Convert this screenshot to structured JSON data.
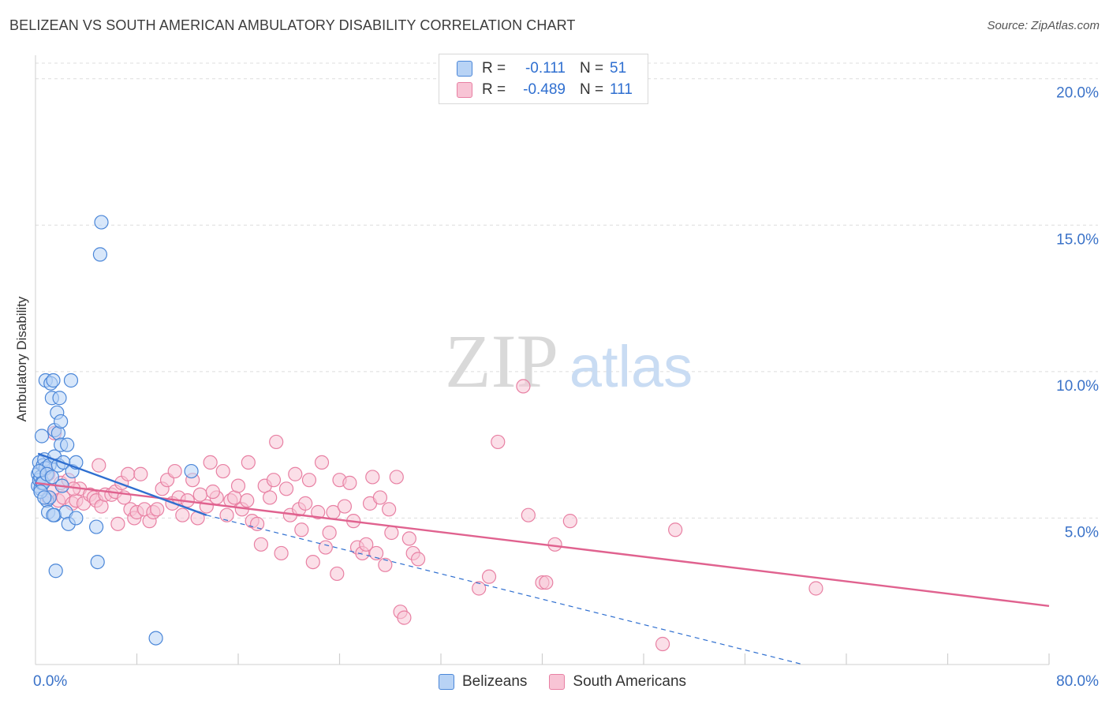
{
  "title": "BELIZEAN VS SOUTH AMERICAN AMBULATORY DISABILITY CORRELATION CHART",
  "source": "Source: ZipAtlas.com",
  "watermark": {
    "zip": "ZIP",
    "atlas": "atlas"
  },
  "legend_top": {
    "rows": [
      {
        "r_label": "R =",
        "r_value": "-0.111",
        "n_label": "N =",
        "n_value": "51"
      },
      {
        "r_label": "R =",
        "r_value": "-0.489",
        "n_label": "N =",
        "n_value": "111"
      }
    ]
  },
  "legend_bottom": {
    "items": [
      {
        "label": "Belizeans"
      },
      {
        "label": "South Americans"
      }
    ]
  },
  "colors": {
    "belizean_fill": "#b8d3f5",
    "belizean_stroke": "#4a86d8",
    "belizean_line": "#2f6fd0",
    "south_fill": "#f8c4d5",
    "south_stroke": "#e880a3",
    "south_line": "#e0628f",
    "axis_label": "#3a72c8",
    "grid": "#dedede"
  },
  "chart_data": {
    "type": "scatter",
    "title": "BELIZEAN VS SOUTH AMERICAN AMBULATORY DISABILITY CORRELATION CHART",
    "xlabel": "",
    "ylabel": "Ambulatory Disability",
    "xlim": [
      0,
      80
    ],
    "ylim": [
      0,
      20.8
    ],
    "x_tick_labels": [
      "0.0%",
      "80.0%"
    ],
    "y_ticks": [
      5,
      10,
      15,
      20
    ],
    "y_tick_labels": [
      "5.0%",
      "10.0%",
      "15.0%",
      "20.0%"
    ],
    "grid": true,
    "legend_placement": "top-center",
    "series": [
      {
        "name": "Belizeans",
        "r": -0.111,
        "n": 51,
        "trend": {
          "x0": 0.2,
          "y0": 7.2,
          "x1": 13.5,
          "y1": 5.1,
          "solid_until": 13.5,
          "dash_to_x": 60.6,
          "dash_to_y": 0.0
        },
        "points": [
          [
            0.2,
            6.1
          ],
          [
            0.2,
            6.5
          ],
          [
            0.3,
            6.3
          ],
          [
            0.3,
            6.9
          ],
          [
            0.4,
            6.0
          ],
          [
            0.4,
            6.4
          ],
          [
            0.5,
            7.8
          ],
          [
            0.5,
            6.2
          ],
          [
            0.6,
            6.8
          ],
          [
            0.7,
            7.0
          ],
          [
            0.8,
            9.7
          ],
          [
            0.8,
            6.7
          ],
          [
            0.9,
            5.6
          ],
          [
            1.0,
            5.2
          ],
          [
            1.1,
            6.8
          ],
          [
            1.2,
            9.6
          ],
          [
            1.3,
            9.1
          ],
          [
            1.4,
            9.7
          ],
          [
            1.5,
            7.1
          ],
          [
            1.5,
            8.0
          ],
          [
            1.5,
            5.1
          ],
          [
            1.6,
            3.2
          ],
          [
            1.7,
            8.6
          ],
          [
            1.8,
            7.9
          ],
          [
            1.8,
            6.8
          ],
          [
            1.9,
            9.1
          ],
          [
            2.0,
            8.3
          ],
          [
            2.0,
            7.5
          ],
          [
            2.2,
            6.9
          ],
          [
            2.4,
            5.2
          ],
          [
            2.5,
            7.5
          ],
          [
            2.6,
            4.8
          ],
          [
            2.8,
            9.7
          ],
          [
            2.9,
            6.6
          ],
          [
            3.2,
            6.9
          ],
          [
            3.2,
            5.0
          ],
          [
            4.8,
            4.7
          ],
          [
            4.9,
            3.5
          ],
          [
            5.1,
            14.0
          ],
          [
            5.2,
            15.1
          ],
          [
            9.5,
            0.9
          ],
          [
            12.3,
            6.6
          ],
          [
            0.3,
            6.6
          ],
          [
            0.6,
            6.2
          ],
          [
            0.9,
            6.5
          ],
          [
            1.1,
            5.7
          ],
          [
            1.3,
            6.4
          ],
          [
            0.4,
            5.9
          ],
          [
            0.7,
            5.7
          ],
          [
            2.1,
            6.1
          ],
          [
            1.4,
            5.1
          ]
        ]
      },
      {
        "name": "South Americans",
        "r": -0.489,
        "n": 111,
        "trend": {
          "x0": 0.0,
          "y0": 6.2,
          "x1": 80.0,
          "y1": 2.0
        },
        "points": [
          [
            0.5,
            6.2
          ],
          [
            0.8,
            6.7
          ],
          [
            1.0,
            6.5
          ],
          [
            1.0,
            5.7
          ],
          [
            1.3,
            5.9
          ],
          [
            1.5,
            7.9
          ],
          [
            1.8,
            5.6
          ],
          [
            2.0,
            6.2
          ],
          [
            2.2,
            5.7
          ],
          [
            2.6,
            6.3
          ],
          [
            2.9,
            5.5
          ],
          [
            3.2,
            5.6
          ],
          [
            3.5,
            6.0
          ],
          [
            3.8,
            5.5
          ],
          [
            4.3,
            5.8
          ],
          [
            4.6,
            5.7
          ],
          [
            4.8,
            5.6
          ],
          [
            5.0,
            6.8
          ],
          [
            5.2,
            5.4
          ],
          [
            5.5,
            5.8
          ],
          [
            6.0,
            5.8
          ],
          [
            6.3,
            5.9
          ],
          [
            6.5,
            4.8
          ],
          [
            6.8,
            6.2
          ],
          [
            7.0,
            5.7
          ],
          [
            7.3,
            6.5
          ],
          [
            7.5,
            5.3
          ],
          [
            7.8,
            5.0
          ],
          [
            8.0,
            5.2
          ],
          [
            8.3,
            6.5
          ],
          [
            8.6,
            5.3
          ],
          [
            9.0,
            4.9
          ],
          [
            9.3,
            5.2
          ],
          [
            9.6,
            5.3
          ],
          [
            10.0,
            6.0
          ],
          [
            10.4,
            6.3
          ],
          [
            10.8,
            5.5
          ],
          [
            11.0,
            6.6
          ],
          [
            11.3,
            5.7
          ],
          [
            11.6,
            5.1
          ],
          [
            12.0,
            5.6
          ],
          [
            12.4,
            6.3
          ],
          [
            12.8,
            5.0
          ],
          [
            13.0,
            5.8
          ],
          [
            13.5,
            5.4
          ],
          [
            13.8,
            6.9
          ],
          [
            14.3,
            5.7
          ],
          [
            14.8,
            6.6
          ],
          [
            15.1,
            5.1
          ],
          [
            15.4,
            5.6
          ],
          [
            15.7,
            5.7
          ],
          [
            16.0,
            6.1
          ],
          [
            16.3,
            5.3
          ],
          [
            16.8,
            6.9
          ],
          [
            17.1,
            4.9
          ],
          [
            17.5,
            4.8
          ],
          [
            17.8,
            4.1
          ],
          [
            18.1,
            6.1
          ],
          [
            18.5,
            5.7
          ],
          [
            18.8,
            6.3
          ],
          [
            19.0,
            7.6
          ],
          [
            19.4,
            3.8
          ],
          [
            19.8,
            6.0
          ],
          [
            20.1,
            5.1
          ],
          [
            20.5,
            6.5
          ],
          [
            20.8,
            5.3
          ],
          [
            21.0,
            4.6
          ],
          [
            21.3,
            5.5
          ],
          [
            21.6,
            6.3
          ],
          [
            21.9,
            3.5
          ],
          [
            22.3,
            5.2
          ],
          [
            22.6,
            6.9
          ],
          [
            22.9,
            4.0
          ],
          [
            23.2,
            4.5
          ],
          [
            23.5,
            5.2
          ],
          [
            23.8,
            3.1
          ],
          [
            24.0,
            6.3
          ],
          [
            24.4,
            5.4
          ],
          [
            24.8,
            6.2
          ],
          [
            25.1,
            4.9
          ],
          [
            25.4,
            4.0
          ],
          [
            25.8,
            3.8
          ],
          [
            26.1,
            4.1
          ],
          [
            26.4,
            5.5
          ],
          [
            26.6,
            6.4
          ],
          [
            26.9,
            3.8
          ],
          [
            27.2,
            5.7
          ],
          [
            27.6,
            3.4
          ],
          [
            27.9,
            5.3
          ],
          [
            28.1,
            4.5
          ],
          [
            28.5,
            6.4
          ],
          [
            28.8,
            1.8
          ],
          [
            29.1,
            1.6
          ],
          [
            29.5,
            4.3
          ],
          [
            29.8,
            3.8
          ],
          [
            30.2,
            3.6
          ],
          [
            35.0,
            2.6
          ],
          [
            35.8,
            3.0
          ],
          [
            36.5,
            7.6
          ],
          [
            38.5,
            9.5
          ],
          [
            38.9,
            5.1
          ],
          [
            40.0,
            2.8
          ],
          [
            40.3,
            2.8
          ],
          [
            41.0,
            4.1
          ],
          [
            42.2,
            4.9
          ],
          [
            49.5,
            0.7
          ],
          [
            50.5,
            4.6
          ],
          [
            61.6,
            2.6
          ],
          [
            14.0,
            5.9
          ],
          [
            16.7,
            5.6
          ],
          [
            3.0,
            6.0
          ]
        ]
      }
    ]
  }
}
